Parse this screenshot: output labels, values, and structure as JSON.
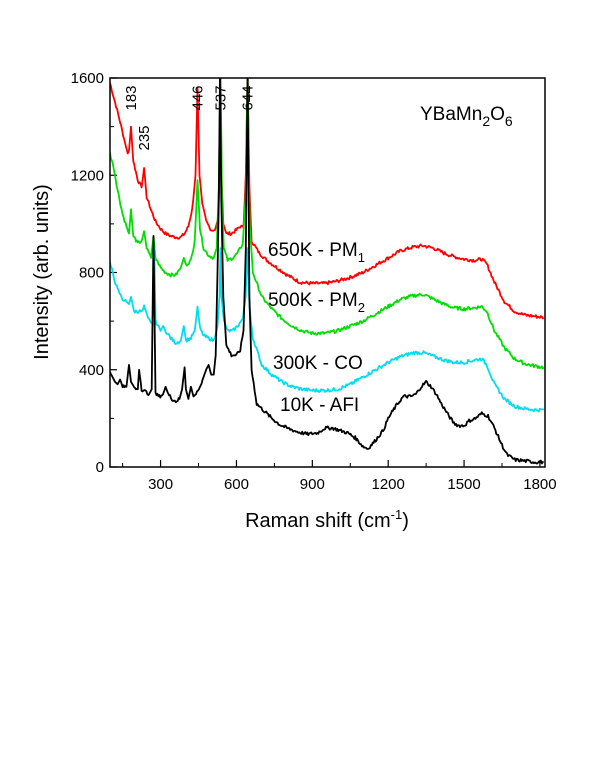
{
  "chart_data": {
    "type": "line",
    "title": "",
    "xlabel": "Raman shift (cm",
    "xlabel_sup": "-1",
    "xlabel_end": ")",
    "ylabel": "Intensity (arb. units)",
    "xlim": [
      100,
      1820
    ],
    "ylim": [
      0,
      1600
    ],
    "xticks": [
      300,
      600,
      900,
      1200,
      1500,
      1800
    ],
    "yticks": [
      0,
      400,
      800,
      1200,
      1600
    ],
    "compound": {
      "base": "YBaMn",
      "sub1": "2",
      "mid": "O",
      "sub2": "6"
    },
    "peak_labels": [
      {
        "text": "183",
        "x": 183
      },
      {
        "text": "235",
        "x": 235
      },
      {
        "text": "446",
        "x": 446
      },
      {
        "text": "537",
        "x": 537
      },
      {
        "text": "644",
        "x": 644
      }
    ],
    "series": [
      {
        "key": "s650",
        "label_main": "650K - PM",
        "label_sub": "1",
        "color": "#ff0000",
        "points": [
          [
            100,
            1580
          ],
          [
            120,
            1500
          ],
          [
            140,
            1420
          ],
          [
            160,
            1330
          ],
          [
            170,
            1290
          ],
          [
            175,
            1300
          ],
          [
            183,
            1400
          ],
          [
            192,
            1260
          ],
          [
            210,
            1180
          ],
          [
            225,
            1150
          ],
          [
            235,
            1230
          ],
          [
            245,
            1110
          ],
          [
            265,
            1050
          ],
          [
            280,
            1010
          ],
          [
            300,
            980
          ],
          [
            320,
            960
          ],
          [
            340,
            950
          ],
          [
            360,
            945
          ],
          [
            380,
            945
          ],
          [
            395,
            960
          ],
          [
            410,
            990
          ],
          [
            425,
            1060
          ],
          [
            438,
            1200
          ],
          [
            446,
            1560
          ],
          [
            454,
            1200
          ],
          [
            465,
            1080
          ],
          [
            480,
            1010
          ],
          [
            500,
            975
          ],
          [
            515,
            975
          ],
          [
            527,
            1020
          ],
          [
            533,
            1200
          ],
          [
            537,
            1620
          ],
          [
            541,
            1200
          ],
          [
            548,
            1000
          ],
          [
            560,
            960
          ],
          [
            580,
            960
          ],
          [
            600,
            975
          ],
          [
            615,
            990
          ],
          [
            628,
            985
          ],
          [
            637,
            1200
          ],
          [
            644,
            1620
          ],
          [
            651,
            1150
          ],
          [
            660,
            930
          ],
          [
            690,
            880
          ],
          [
            720,
            850
          ],
          [
            760,
            820
          ],
          [
            800,
            790
          ],
          [
            850,
            760
          ],
          [
            900,
            755
          ],
          [
            950,
            755
          ],
          [
            1000,
            765
          ],
          [
            1050,
            780
          ],
          [
            1100,
            800
          ],
          [
            1150,
            830
          ],
          [
            1200,
            860
          ],
          [
            1250,
            890
          ],
          [
            1300,
            905
          ],
          [
            1340,
            910
          ],
          [
            1380,
            900
          ],
          [
            1420,
            880
          ],
          [
            1460,
            865
          ],
          [
            1500,
            855
          ],
          [
            1540,
            850
          ],
          [
            1570,
            855
          ],
          [
            1590,
            835
          ],
          [
            1620,
            760
          ],
          [
            1660,
            680
          ],
          [
            1700,
            640
          ],
          [
            1740,
            625
          ],
          [
            1780,
            620
          ],
          [
            1815,
            615
          ]
        ]
      },
      {
        "key": "s500",
        "label_main": "500K - PM",
        "label_sub": "2",
        "color": "#00dd00",
        "points": [
          [
            100,
            1290
          ],
          [
            115,
            1230
          ],
          [
            130,
            1140
          ],
          [
            150,
            1040
          ],
          [
            165,
            990
          ],
          [
            175,
            960
          ],
          [
            183,
            1060
          ],
          [
            192,
            950
          ],
          [
            210,
            920
          ],
          [
            225,
            930
          ],
          [
            235,
            970
          ],
          [
            245,
            900
          ],
          [
            262,
            860
          ],
          [
            272,
            950
          ],
          [
            280,
            860
          ],
          [
            300,
            820
          ],
          [
            320,
            800
          ],
          [
            340,
            790
          ],
          [
            360,
            790
          ],
          [
            380,
            820
          ],
          [
            392,
            860
          ],
          [
            400,
            830
          ],
          [
            420,
            850
          ],
          [
            435,
            930
          ],
          [
            446,
            1180
          ],
          [
            456,
            980
          ],
          [
            470,
            900
          ],
          [
            490,
            870
          ],
          [
            510,
            860
          ],
          [
            522,
            900
          ],
          [
            530,
            1150
          ],
          [
            537,
            1620
          ],
          [
            543,
            1100
          ],
          [
            550,
            900
          ],
          [
            565,
            850
          ],
          [
            585,
            860
          ],
          [
            605,
            880
          ],
          [
            625,
            920
          ],
          [
            636,
            1100
          ],
          [
            644,
            1620
          ],
          [
            652,
            1000
          ],
          [
            665,
            800
          ],
          [
            700,
            700
          ],
          [
            740,
            650
          ],
          [
            780,
            610
          ],
          [
            820,
            580
          ],
          [
            860,
            560
          ],
          [
            900,
            550
          ],
          [
            950,
            550
          ],
          [
            1000,
            560
          ],
          [
            1050,
            580
          ],
          [
            1100,
            600
          ],
          [
            1150,
            630
          ],
          [
            1200,
            660
          ],
          [
            1250,
            690
          ],
          [
            1300,
            705
          ],
          [
            1340,
            710
          ],
          [
            1380,
            690
          ],
          [
            1420,
            670
          ],
          [
            1460,
            655
          ],
          [
            1500,
            650
          ],
          [
            1540,
            655
          ],
          [
            1570,
            660
          ],
          [
            1590,
            640
          ],
          [
            1620,
            560
          ],
          [
            1660,
            490
          ],
          [
            1700,
            445
          ],
          [
            1740,
            425
          ],
          [
            1780,
            415
          ],
          [
            1815,
            410
          ]
        ]
      },
      {
        "key": "s300",
        "label_main": "300K - CO",
        "color": "#00ddee",
        "points": [
          [
            100,
            840
          ],
          [
            115,
            780
          ],
          [
            130,
            730
          ],
          [
            150,
            690
          ],
          [
            165,
            680
          ],
          [
            175,
            670
          ],
          [
            183,
            700
          ],
          [
            195,
            640
          ],
          [
            210,
            640
          ],
          [
            225,
            640
          ],
          [
            235,
            660
          ],
          [
            250,
            610
          ],
          [
            268,
            590
          ],
          [
            275,
            900
          ],
          [
            280,
            600
          ],
          [
            300,
            560
          ],
          [
            310,
            580
          ],
          [
            320,
            560
          ],
          [
            340,
            530
          ],
          [
            360,
            510
          ],
          [
            380,
            520
          ],
          [
            392,
            580
          ],
          [
            400,
            520
          ],
          [
            420,
            530
          ],
          [
            435,
            560
          ],
          [
            446,
            660
          ],
          [
            456,
            570
          ],
          [
            470,
            540
          ],
          [
            490,
            530
          ],
          [
            510,
            520
          ],
          [
            525,
            580
          ],
          [
            533,
            700
          ],
          [
            537,
            900
          ],
          [
            541,
            700
          ],
          [
            550,
            600
          ],
          [
            565,
            560
          ],
          [
            585,
            560
          ],
          [
            605,
            580
          ],
          [
            625,
            610
          ],
          [
            636,
            700
          ],
          [
            644,
            900
          ],
          [
            652,
            650
          ],
          [
            665,
            530
          ],
          [
            700,
            420
          ],
          [
            740,
            380
          ],
          [
            780,
            350
          ],
          [
            820,
            330
          ],
          [
            860,
            320
          ],
          [
            900,
            315
          ],
          [
            950,
            315
          ],
          [
            1000,
            320
          ],
          [
            1050,
            340
          ],
          [
            1100,
            370
          ],
          [
            1150,
            400
          ],
          [
            1200,
            430
          ],
          [
            1250,
            455
          ],
          [
            1300,
            470
          ],
          [
            1340,
            470
          ],
          [
            1380,
            455
          ],
          [
            1420,
            440
          ],
          [
            1460,
            430
          ],
          [
            1500,
            430
          ],
          [
            1540,
            440
          ],
          [
            1570,
            445
          ],
          [
            1590,
            420
          ],
          [
            1620,
            340
          ],
          [
            1660,
            280
          ],
          [
            1700,
            250
          ],
          [
            1740,
            240
          ],
          [
            1780,
            235
          ],
          [
            1815,
            235
          ]
        ]
      },
      {
        "key": "s10",
        "label_main": "10K - AFI",
        "color": "#000000",
        "points": [
          [
            100,
            390
          ],
          [
            110,
            370
          ],
          [
            120,
            350
          ],
          [
            130,
            340
          ],
          [
            140,
            360
          ],
          [
            150,
            330
          ],
          [
            165,
            330
          ],
          [
            175,
            420
          ],
          [
            183,
            350
          ],
          [
            195,
            330
          ],
          [
            210,
            320
          ],
          [
            215,
            400
          ],
          [
            225,
            320
          ],
          [
            240,
            310
          ],
          [
            255,
            300
          ],
          [
            265,
            320
          ],
          [
            272,
            950
          ],
          [
            280,
            300
          ],
          [
            295,
            290
          ],
          [
            310,
            300
          ],
          [
            320,
            330
          ],
          [
            330,
            300
          ],
          [
            345,
            280
          ],
          [
            360,
            270
          ],
          [
            375,
            280
          ],
          [
            385,
            320
          ],
          [
            395,
            410
          ],
          [
            400,
            320
          ],
          [
            410,
            280
          ],
          [
            420,
            330
          ],
          [
            430,
            290
          ],
          [
            440,
            300
          ],
          [
            455,
            330
          ],
          [
            470,
            370
          ],
          [
            480,
            400
          ],
          [
            490,
            420
          ],
          [
            500,
            380
          ],
          [
            510,
            380
          ],
          [
            518,
            460
          ],
          [
            525,
            800
          ],
          [
            530,
            1100
          ],
          [
            535,
            1620
          ],
          [
            540,
            1100
          ],
          [
            548,
            700
          ],
          [
            560,
            500
          ],
          [
            580,
            460
          ],
          [
            600,
            460
          ],
          [
            615,
            480
          ],
          [
            628,
            560
          ],
          [
            637,
            900
          ],
          [
            644,
            1620
          ],
          [
            651,
            700
          ],
          [
            660,
            400
          ],
          [
            680,
            260
          ],
          [
            710,
            230
          ],
          [
            740,
            200
          ],
          [
            770,
            175
          ],
          [
            800,
            160
          ],
          [
            840,
            145
          ],
          [
            880,
            135
          ],
          [
            920,
            140
          ],
          [
            950,
            160
          ],
          [
            980,
            160
          ],
          [
            1010,
            150
          ],
          [
            1040,
            140
          ],
          [
            1070,
            120
          ],
          [
            1100,
            85
          ],
          [
            1120,
            75
          ],
          [
            1150,
            110
          ],
          [
            1180,
            150
          ],
          [
            1200,
            200
          ],
          [
            1230,
            250
          ],
          [
            1260,
            290
          ],
          [
            1290,
            290
          ],
          [
            1310,
            300
          ],
          [
            1330,
            330
          ],
          [
            1350,
            350
          ],
          [
            1370,
            330
          ],
          [
            1390,
            300
          ],
          [
            1410,
            260
          ],
          [
            1440,
            210
          ],
          [
            1460,
            180
          ],
          [
            1480,
            170
          ],
          [
            1500,
            170
          ],
          [
            1520,
            190
          ],
          [
            1545,
            200
          ],
          [
            1570,
            220
          ],
          [
            1595,
            210
          ],
          [
            1620,
            160
          ],
          [
            1650,
            90
          ],
          [
            1670,
            50
          ],
          [
            1700,
            30
          ],
          [
            1740,
            25
          ],
          [
            1780,
            20
          ],
          [
            1815,
            20
          ]
        ]
      }
    ]
  }
}
